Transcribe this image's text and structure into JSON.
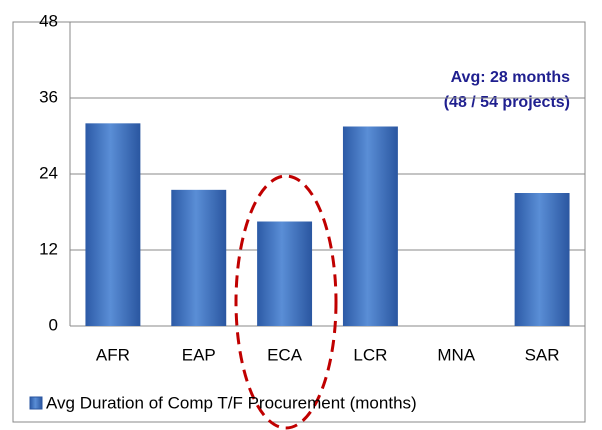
{
  "chart_data": {
    "type": "bar",
    "categories": [
      "AFR",
      "EAP",
      "ECA",
      "LCR",
      "MNA",
      "SAR"
    ],
    "series": [
      {
        "name": "Avg Duration of Comp T/F Procurement (months)",
        "color": "#3a6fc0",
        "values": [
          32,
          21.5,
          16.5,
          31.5,
          0,
          21
        ]
      }
    ],
    "ylim": [
      0,
      48
    ],
    "yticks": [
      0,
      12,
      24,
      36,
      48
    ],
    "grid": true,
    "annotations": [
      "Avg: 28 months",
      "(48 / 54 projects)"
    ]
  }
}
